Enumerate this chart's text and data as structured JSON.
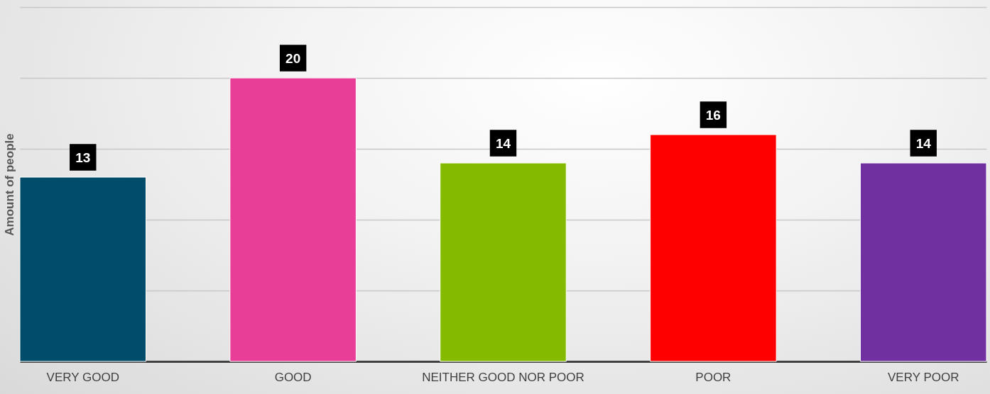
{
  "chart_data": {
    "type": "bar",
    "ylabel": "Amount of people",
    "categories": [
      "VERY GOOD",
      "GOOD",
      "NEITHER GOOD NOR POOR",
      "POOR",
      "VERY POOR"
    ],
    "values": [
      13,
      20,
      14,
      16,
      14
    ],
    "colors": [
      "#004c6a",
      "#e83e97",
      "#84bb00",
      "#ff0000",
      "#7030a0"
    ],
    "ylim": [
      0,
      25
    ],
    "yticks": [
      {
        "value": 0,
        "label": null
      },
      {
        "value": 5,
        "label": null
      },
      {
        "value": 10,
        "label": null
      },
      {
        "value": 15,
        "label": null
      },
      {
        "value": 20,
        "label": null
      },
      {
        "value": 25,
        "label": null
      }
    ],
    "grid": "y",
    "tick_labels": "x",
    "data_labels": true
  }
}
